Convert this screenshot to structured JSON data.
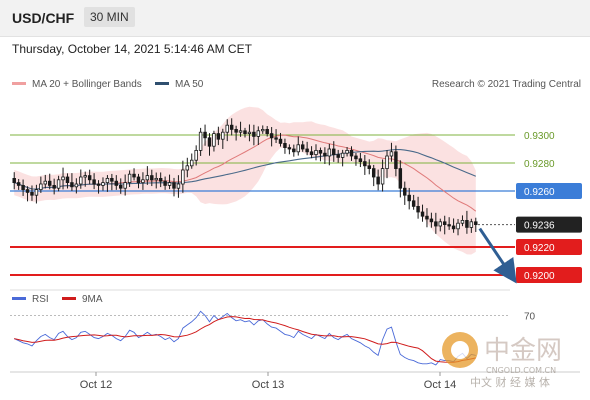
{
  "header": {
    "symbol": "USD/CHF",
    "timeframe": "30 MIN",
    "timestamp": "Thursday, October 14, 2021 5:14:46 AM CET"
  },
  "legend": {
    "ma20": "MA 20 + Bollinger Bands",
    "ma50": "MA 50",
    "source": "Research © 2021 Trading Central",
    "rsi": "RSI",
    "ma9": "9MA"
  },
  "watermark": {
    "brand": "中金网",
    "url": "CNGOLD.COM.CN",
    "tagline": "中文 财 经 媒 体"
  },
  "colors": {
    "candle": "#1a1a1a",
    "bollinger": "#f8c8c8",
    "ma20": "#e07a7a",
    "ma50": "#4a6a8a",
    "current": "#3b7dd8",
    "support": "#e21d1d",
    "resistance": "#7fb33f",
    "rsi": "#4a6ad8",
    "ma9": "#d01c1c",
    "arrow": "#2f5e93"
  },
  "chart_data": {
    "type": "candlestick",
    "x_ticks": [
      "Oct 12",
      "Oct 13",
      "Oct 14"
    ],
    "ylim": [
      0.9195,
      0.9325
    ],
    "levels": [
      {
        "label": "0.9300",
        "value": 0.93,
        "kind": "resistance"
      },
      {
        "label": "0.9280",
        "value": 0.928,
        "kind": "resistance"
      },
      {
        "label": "0.9260",
        "value": 0.926,
        "kind": "pivot"
      },
      {
        "label": "0.9236",
        "value": 0.9236,
        "kind": "current"
      },
      {
        "label": "0.9220",
        "value": 0.922,
        "kind": "support"
      },
      {
        "label": "0.9200",
        "value": 0.92,
        "kind": "support"
      }
    ],
    "close_series": [
      0.9266,
      0.9264,
      0.9261,
      0.9259,
      0.9257,
      0.9261,
      0.9265,
      0.9267,
      0.9264,
      0.9262,
      0.9268,
      0.927,
      0.9266,
      0.9263,
      0.9265,
      0.927,
      0.9271,
      0.9268,
      0.9265,
      0.9264,
      0.9266,
      0.9269,
      0.9267,
      0.9264,
      0.9262,
      0.9266,
      0.9272,
      0.927,
      0.9266,
      0.9268,
      0.9271,
      0.9268,
      0.9269,
      0.9267,
      0.9264,
      0.9266,
      0.9262,
      0.9265,
      0.9275,
      0.9278,
      0.9282,
      0.9289,
      0.9302,
      0.9298,
      0.9292,
      0.9301,
      0.9297,
      0.9302,
      0.9307,
      0.9304,
      0.9302,
      0.9303,
      0.9301,
      0.9302,
      0.9299,
      0.9303,
      0.9304,
      0.9301,
      0.9298,
      0.9297,
      0.9294,
      0.9291,
      0.929,
      0.9288,
      0.9293,
      0.929,
      0.9288,
      0.9286,
      0.9289,
      0.9287,
      0.9285,
      0.929,
      0.9286,
      0.9284,
      0.9287,
      0.9289,
      0.9285,
      0.9283,
      0.9281,
      0.9278,
      0.9276,
      0.927,
      0.9265,
      0.9276,
      0.9285,
      0.9288,
      0.9276,
      0.9262,
      0.9257,
      0.9253,
      0.9249,
      0.9245,
      0.9242,
      0.924,
      0.9238,
      0.9235,
      0.9238,
      0.9236,
      0.9235,
      0.9233,
      0.9237,
      0.9239,
      0.9234,
      0.9238,
      0.9236
    ],
    "rsi": {
      "ylim": [
        20,
        80
      ],
      "ticks": [
        70
      ],
      "values": [
        48,
        46,
        44,
        43,
        41,
        46,
        50,
        52,
        49,
        47,
        53,
        55,
        50,
        47,
        49,
        54,
        55,
        52,
        49,
        48,
        50,
        53,
        51,
        48,
        46,
        50,
        56,
        54,
        49,
        51,
        54,
        51,
        52,
        50,
        47,
        49,
        45,
        48,
        58,
        61,
        64,
        68,
        74,
        70,
        64,
        70,
        66,
        69,
        72,
        68,
        65,
        66,
        64,
        65,
        61,
        65,
        66,
        62,
        59,
        58,
        55,
        52,
        51,
        49,
        55,
        52,
        50,
        48,
        52,
        50,
        48,
        53,
        49,
        47,
        50,
        52,
        48,
        46,
        44,
        41,
        39,
        35,
        32,
        47,
        57,
        59,
        45,
        33,
        30,
        28,
        27,
        25,
        24,
        24,
        25,
        23,
        28,
        27,
        27,
        26,
        31,
        34,
        29,
        33,
        32
      ]
    }
  }
}
